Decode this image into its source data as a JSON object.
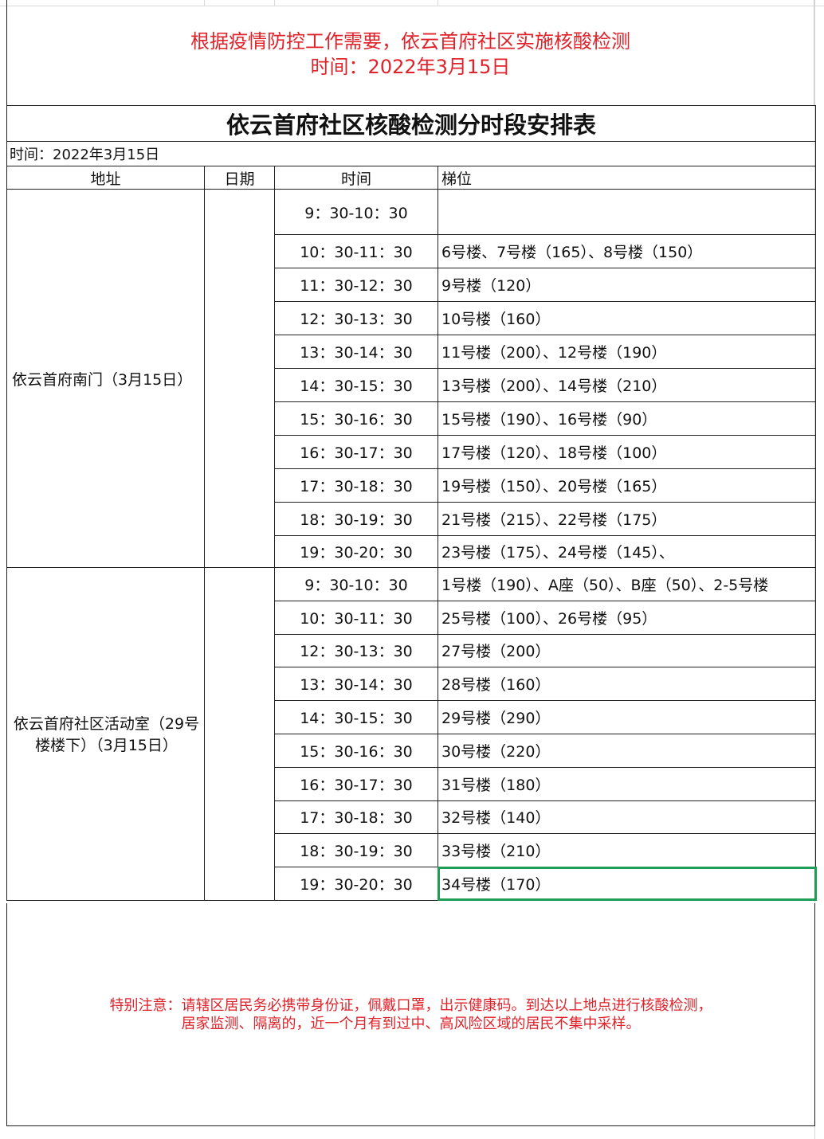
{
  "notice_top": {
    "line1": "根据疫情防控工作需要，依云首府社区实施核酸检测",
    "line2": "时间：2022年3月15日"
  },
  "sheet": {
    "title": "依云首府社区核酸检测分时段安排表",
    "date_line": "时间：2022年3月15日",
    "headers": [
      "地址",
      "日期",
      "时间",
      "梯位"
    ],
    "groups": [
      {
        "address": "依云首府南门（3月15日）",
        "date": "",
        "rows": [
          {
            "time": "9：30-10：30",
            "buildings": ""
          },
          {
            "time": "10：30-11：30",
            "buildings": "6号楼、7号楼（165）、8号楼（150）"
          },
          {
            "time": "11：30-12：30",
            "buildings": "9号楼（120）"
          },
          {
            "time": "12：30-13：30",
            "buildings": "10号楼（160）"
          },
          {
            "time": "13：30-14：30",
            "buildings": "11号楼（200）、12号楼（190）"
          },
          {
            "time": "14：30-15：30",
            "buildings": "13号楼（200）、14号楼（210）"
          },
          {
            "time": "15：30-16：30",
            "buildings": "15号楼（190）、16号楼（90）"
          },
          {
            "time": "16：30-17：30",
            "buildings": "17号楼（120）、18号楼（100）"
          },
          {
            "time": "17：30-18：30",
            "buildings": "19号楼（150）、20号楼（165）"
          },
          {
            "time": "18：30-19：30",
            "buildings": "21号楼（215）、22号楼（175）"
          },
          {
            "time": "19：30-20：30",
            "buildings": "23号楼（175）、24号楼（145）、"
          }
        ]
      },
      {
        "address": "依云首府社区活动室（29号楼楼下）（3月15日）",
        "date": "",
        "rows": [
          {
            "time": "9：30-10：30",
            "buildings": "1号楼（190）、A座（50）、B座（50）、2-5号楼"
          },
          {
            "time": "10：30-11：30",
            "buildings": "25号楼（100）、26号楼（95）"
          },
          {
            "time": "12：30-13：30",
            "buildings": "27号楼（200）"
          },
          {
            "time": "13：30-14：30",
            "buildings": "28号楼（160）"
          },
          {
            "time": "14：30-15：30",
            "buildings": "29号楼（290）"
          },
          {
            "time": "15：30-16：30",
            "buildings": "30号楼（220）"
          },
          {
            "time": "16：30-17：30",
            "buildings": "31号楼（180）"
          },
          {
            "time": "17：30-18：30",
            "buildings": "32号楼（140）"
          },
          {
            "time": "18：30-19：30",
            "buildings": "33号楼（210）"
          },
          {
            "time": "19：30-20：30",
            "buildings": "34号楼（170）"
          }
        ]
      }
    ],
    "selected_cell": "34号楼（170）",
    "selection_color": "#1f9d55"
  },
  "notice_bottom": {
    "line1": "特别注意：请辖区居民务必携带身份证，佩戴口罩，出示健康码。到达以上地点进行核酸检测，",
    "line2": "居家监测、隔离的，近一个月有到过中、高风险区域的居民不集中采样。"
  },
  "colors": {
    "notice_red": "#e0222a"
  }
}
